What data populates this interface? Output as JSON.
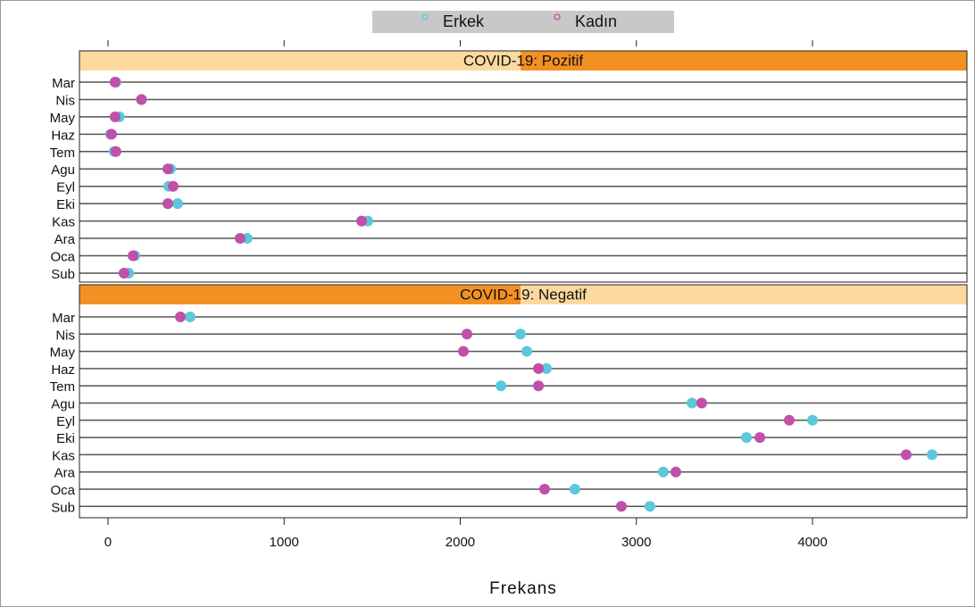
{
  "chart_data": [
    {
      "type": "dot",
      "title": "COVID-19: Pozitif",
      "categories": [
        "Mar",
        "Nis",
        "May",
        "Haz",
        "Tem",
        "Agu",
        "Eyl",
        "Eki",
        "Kas",
        "Ara",
        "Oca",
        "Sub"
      ],
      "series": [
        {
          "name": "Erkek",
          "color": "#5bc8dc",
          "values": [
            45,
            190,
            65,
            15,
            35,
            355,
            345,
            395,
            1475,
            790,
            152,
            117
          ]
        },
        {
          "name": "Kadın",
          "color": "#c050a8",
          "values": [
            40,
            190,
            40,
            20,
            45,
            340,
            370,
            340,
            1440,
            750,
            142,
            91
          ]
        }
      ],
      "xlim": [
        -162,
        4877
      ],
      "xticks": [
        0,
        1000,
        2000,
        3000,
        4000
      ]
    },
    {
      "type": "dot",
      "title": "COVID-19: Negatif",
      "categories": [
        "Mar",
        "Nis",
        "May",
        "Haz",
        "Tem",
        "Agu",
        "Eyl",
        "Eki",
        "Kas",
        "Ara",
        "Oca",
        "Sub"
      ],
      "series": [
        {
          "name": "Erkek",
          "color": "#5bc8dc",
          "values": [
            466,
            2342,
            2378,
            2489,
            2231,
            3316,
            4000,
            3625,
            4679,
            3153,
            2651,
            3077
          ]
        },
        {
          "name": "Kadın",
          "color": "#c050a8",
          "values": [
            411,
            2038,
            2018,
            2444,
            2444,
            3371,
            3868,
            3701,
            4532,
            3224,
            2479,
            2915
          ]
        }
      ],
      "xlim": [
        -162,
        4877
      ],
      "xticks": [
        0,
        1000,
        2000,
        3000,
        4000
      ],
      "xlabel": "Frekans"
    }
  ]
}
